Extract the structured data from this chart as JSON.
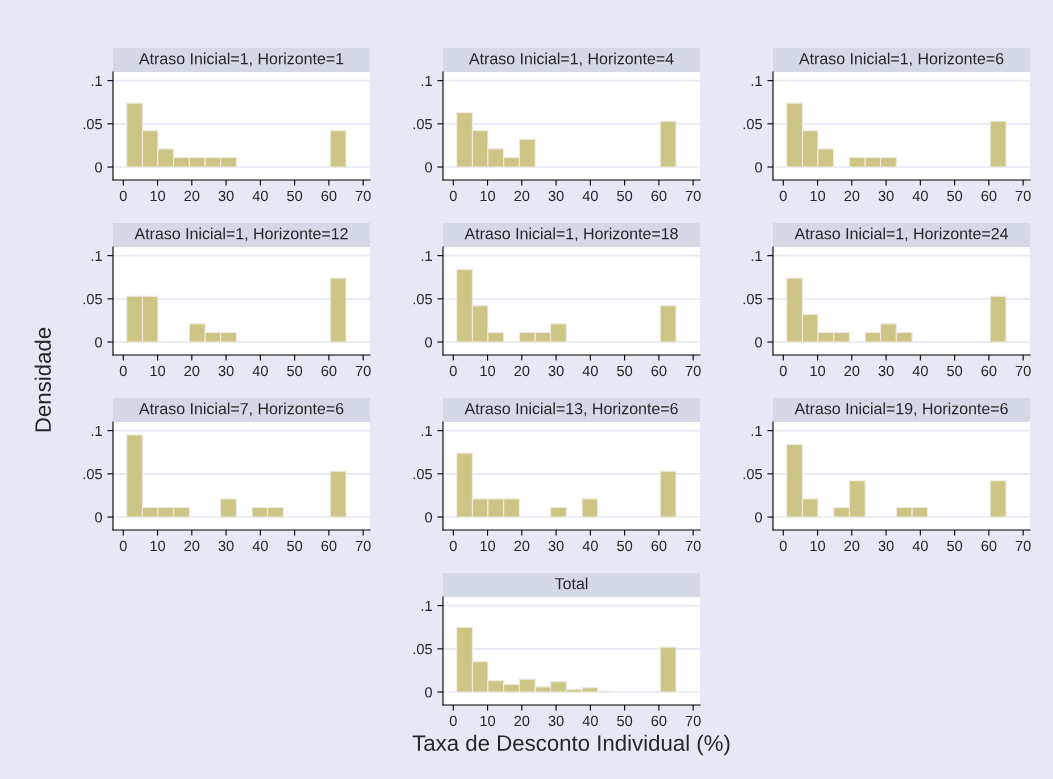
{
  "chart_data": [
    {
      "type": "histogram",
      "title": "Atraso Inicial=1, Horizonte=1",
      "bins": [
        1,
        5.6,
        10.1,
        14.7,
        19.3,
        23.9,
        28.4,
        33,
        37.6,
        42.1,
        46.7,
        51.3,
        55.9,
        60.4,
        65
      ],
      "values": [
        0.074,
        0.042,
        0.021,
        0.011,
        0.011,
        0.011,
        0.011,
        0,
        0,
        0,
        0,
        0,
        0,
        0.042
      ],
      "color": "#cdc585",
      "xlim": [
        -3,
        72
      ],
      "xticks": [
        0,
        10,
        20,
        30,
        40,
        50,
        60,
        70
      ],
      "ylim": [
        -0.015,
        0.11
      ],
      "yticks": [
        {
          "value": 0,
          "label": "0"
        },
        {
          "value": 0.05,
          "label": ".05"
        },
        {
          "value": 0.1,
          "label": ".1"
        }
      ],
      "grid": "y"
    },
    {
      "type": "histogram",
      "title": "Atraso Inicial=1, Horizonte=4",
      "bins": [
        1,
        5.6,
        10.1,
        14.7,
        19.3,
        23.9,
        28.4,
        33,
        37.6,
        42.1,
        46.7,
        51.3,
        55.9,
        60.4,
        65
      ],
      "values": [
        0.063,
        0.042,
        0.021,
        0.011,
        0.032,
        0,
        0,
        0,
        0,
        0,
        0,
        0,
        0,
        0.053
      ],
      "color": "#cdc585",
      "xlim": [
        -3,
        72
      ],
      "xticks": [
        0,
        10,
        20,
        30,
        40,
        50,
        60,
        70
      ],
      "ylim": [
        -0.015,
        0.11
      ],
      "yticks": [
        {
          "value": 0,
          "label": "0"
        },
        {
          "value": 0.05,
          "label": ".05"
        },
        {
          "value": 0.1,
          "label": ".1"
        }
      ],
      "grid": "y"
    },
    {
      "type": "histogram",
      "title": "Atraso Inicial=1, Horizonte=6",
      "bins": [
        1,
        5.6,
        10.1,
        14.7,
        19.3,
        23.9,
        28.4,
        33,
        37.6,
        42.1,
        46.7,
        51.3,
        55.9,
        60.4,
        65
      ],
      "values": [
        0.074,
        0.042,
        0.021,
        0,
        0.011,
        0.011,
        0.011,
        0,
        0,
        0,
        0,
        0,
        0,
        0.053
      ],
      "color": "#cdc585",
      "xlim": [
        -3,
        72
      ],
      "xticks": [
        0,
        10,
        20,
        30,
        40,
        50,
        60,
        70
      ],
      "ylim": [
        -0.015,
        0.11
      ],
      "yticks": [
        {
          "value": 0,
          "label": "0"
        },
        {
          "value": 0.05,
          "label": ".05"
        },
        {
          "value": 0.1,
          "label": ".1"
        }
      ],
      "grid": "y"
    },
    {
      "type": "histogram",
      "title": "Atraso Inicial=1, Horizonte=12",
      "ylabel": "Densidade",
      "bins": [
        1,
        5.6,
        10.1,
        14.7,
        19.3,
        23.9,
        28.4,
        33,
        37.6,
        42.1,
        46.7,
        51.3,
        55.9,
        60.4,
        65
      ],
      "values": [
        0.053,
        0.053,
        0,
        0,
        0.021,
        0.011,
        0.011,
        0,
        0,
        0,
        0,
        0,
        0,
        0.074
      ],
      "color": "#cdc585",
      "xlim": [
        -3,
        72
      ],
      "xticks": [
        0,
        10,
        20,
        30,
        40,
        50,
        60,
        70
      ],
      "ylim": [
        -0.015,
        0.11
      ],
      "yticks": [
        {
          "value": 0,
          "label": "0"
        },
        {
          "value": 0.05,
          "label": ".05"
        },
        {
          "value": 0.1,
          "label": ".1"
        }
      ],
      "grid": "y"
    },
    {
      "type": "histogram",
      "title": "Atraso Inicial=1, Horizonte=18",
      "bins": [
        1,
        5.6,
        10.1,
        14.7,
        19.3,
        23.9,
        28.4,
        33,
        37.6,
        42.1,
        46.7,
        51.3,
        55.9,
        60.4,
        65
      ],
      "values": [
        0.084,
        0.042,
        0.011,
        0,
        0.011,
        0.011,
        0.021,
        0,
        0,
        0,
        0,
        0,
        0,
        0.042
      ],
      "color": "#cdc585",
      "xlim": [
        -3,
        72
      ],
      "xticks": [
        0,
        10,
        20,
        30,
        40,
        50,
        60,
        70
      ],
      "ylim": [
        -0.015,
        0.11
      ],
      "yticks": [
        {
          "value": 0,
          "label": "0"
        },
        {
          "value": 0.05,
          "label": ".05"
        },
        {
          "value": 0.1,
          "label": ".1"
        }
      ],
      "grid": "y"
    },
    {
      "type": "histogram",
      "title": "Atraso Inicial=1, Horizonte=24",
      "bins": [
        1,
        5.6,
        10.1,
        14.7,
        19.3,
        23.9,
        28.4,
        33,
        37.6,
        42.1,
        46.7,
        51.3,
        55.9,
        60.4,
        65
      ],
      "values": [
        0.074,
        0.032,
        0.011,
        0.011,
        0,
        0.011,
        0.021,
        0.011,
        0,
        0,
        0,
        0,
        0,
        0.053
      ],
      "color": "#cdc585",
      "xlim": [
        -3,
        72
      ],
      "xticks": [
        0,
        10,
        20,
        30,
        40,
        50,
        60,
        70
      ],
      "ylim": [
        -0.015,
        0.11
      ],
      "yticks": [
        {
          "value": 0,
          "label": "0"
        },
        {
          "value": 0.05,
          "label": ".05"
        },
        {
          "value": 0.1,
          "label": ".1"
        }
      ],
      "grid": "y"
    },
    {
      "type": "histogram",
      "title": "Atraso Inicial=7, Horizonte=6",
      "bins": [
        1,
        5.6,
        10.1,
        14.7,
        19.3,
        23.9,
        28.4,
        33,
        37.6,
        42.1,
        46.7,
        51.3,
        55.9,
        60.4,
        65
      ],
      "values": [
        0.095,
        0.011,
        0.011,
        0.011,
        0,
        0,
        0.021,
        0,
        0.011,
        0.011,
        0,
        0,
        0,
        0.053
      ],
      "color": "#cdc585",
      "xlim": [
        -3,
        72
      ],
      "xticks": [
        0,
        10,
        20,
        30,
        40,
        50,
        60,
        70
      ],
      "ylim": [
        -0.015,
        0.11
      ],
      "yticks": [
        {
          "value": 0,
          "label": "0"
        },
        {
          "value": 0.05,
          "label": ".05"
        },
        {
          "value": 0.1,
          "label": ".1"
        }
      ],
      "grid": "y"
    },
    {
      "type": "histogram",
      "title": "Atraso Inicial=13, Horizonte=6",
      "bins": [
        1,
        5.6,
        10.1,
        14.7,
        19.3,
        23.9,
        28.4,
        33,
        37.6,
        42.1,
        46.7,
        51.3,
        55.9,
        60.4,
        65
      ],
      "values": [
        0.074,
        0.021,
        0.021,
        0.021,
        0,
        0,
        0.011,
        0,
        0.021,
        0,
        0,
        0,
        0,
        0.053
      ],
      "color": "#cdc585",
      "xlim": [
        -3,
        72
      ],
      "xticks": [
        0,
        10,
        20,
        30,
        40,
        50,
        60,
        70
      ],
      "ylim": [
        -0.015,
        0.11
      ],
      "yticks": [
        {
          "value": 0,
          "label": "0"
        },
        {
          "value": 0.05,
          "label": ".05"
        },
        {
          "value": 0.1,
          "label": ".1"
        }
      ],
      "grid": "y"
    },
    {
      "type": "histogram",
      "title": "Atraso Inicial=19, Horizonte=6",
      "bins": [
        1,
        5.6,
        10.1,
        14.7,
        19.3,
        23.9,
        28.4,
        33,
        37.6,
        42.1,
        46.7,
        51.3,
        55.9,
        60.4,
        65
      ],
      "values": [
        0.084,
        0.021,
        0,
        0.011,
        0.042,
        0,
        0,
        0.011,
        0.011,
        0,
        0,
        0,
        0,
        0.042
      ],
      "color": "#cdc585",
      "xlim": [
        -3,
        72
      ],
      "xticks": [
        0,
        10,
        20,
        30,
        40,
        50,
        60,
        70
      ],
      "ylim": [
        -0.015,
        0.11
      ],
      "yticks": [
        {
          "value": 0,
          "label": "0"
        },
        {
          "value": 0.05,
          "label": ".05"
        },
        {
          "value": 0.1,
          "label": ".1"
        }
      ],
      "grid": "y"
    },
    {
      "type": "histogram",
      "title": "Total",
      "xlabel": "Taxa de Desconto Individual (%)",
      "bins": [
        1,
        5.6,
        10.1,
        14.7,
        19.3,
        23.9,
        28.4,
        33,
        37.6,
        42.1,
        46.7,
        51.3,
        55.9,
        60.4,
        65
      ],
      "values": [
        0.075,
        0.035,
        0.013,
        0.009,
        0.015,
        0.006,
        0.012,
        0.003,
        0.005,
        0.001,
        0,
        0,
        0,
        0.052
      ],
      "color": "#cdc585",
      "xlim": [
        -3,
        72
      ],
      "xticks": [
        0,
        10,
        20,
        30,
        40,
        50,
        60,
        70
      ],
      "ylim": [
        -0.015,
        0.11
      ],
      "yticks": [
        {
          "value": 0,
          "label": "0"
        },
        {
          "value": 0.05,
          "label": ".05"
        },
        {
          "value": 0.1,
          "label": ".1"
        }
      ],
      "grid": "y"
    }
  ]
}
